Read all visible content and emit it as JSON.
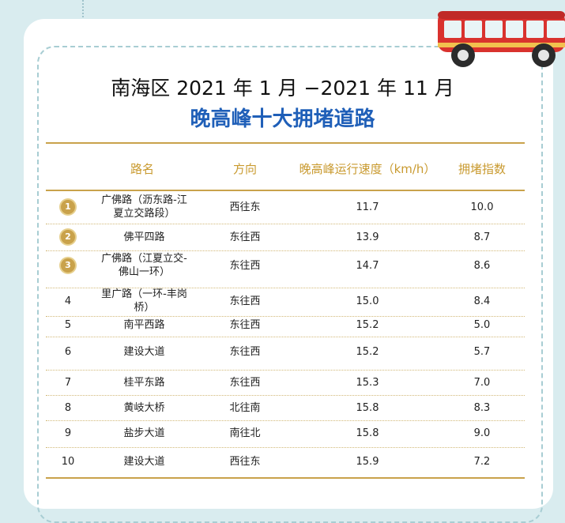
{
  "title_line1": "南海区 2021 年 1 月 −2021 年 11 月",
  "title_line2": "晚高峰十大拥堵道路",
  "headers": {
    "road": "路名",
    "direction": "方向",
    "speed": "晚高峰运行速度（km/h）",
    "index": "拥堵指数"
  },
  "rows": [
    {
      "rank": "1",
      "road": [
        "广佛路（沥东路-江",
        "夏立交路段）"
      ],
      "direction": "西往东",
      "speed": "11.7",
      "index": "10.0",
      "badge": true
    },
    {
      "rank": "2",
      "road": [
        "佛平四路"
      ],
      "direction": "东往西",
      "speed": "13.9",
      "index": "8.7",
      "badge": true
    },
    {
      "rank": "3",
      "road": [
        "广佛路（江夏立交-",
        "佛山一环）"
      ],
      "direction": "东往西",
      "speed": "14.7",
      "index": "8.6",
      "badge": true
    },
    {
      "rank": "4",
      "road": [
        "里广路（一环-丰岗",
        "桥）"
      ],
      "direction": "东往西",
      "speed": "15.0",
      "index": "8.4",
      "badge": false
    },
    {
      "rank": "5",
      "road": [
        "南平西路"
      ],
      "direction": "东往西",
      "speed": "15.2",
      "index": "5.0",
      "badge": false
    },
    {
      "rank": "6",
      "road": [
        "建设大道"
      ],
      "direction": "东往西",
      "speed": "15.2",
      "index": "5.7",
      "badge": false
    },
    {
      "rank": "7",
      "road": [
        "桂平东路"
      ],
      "direction": "东往西",
      "speed": "15.3",
      "index": "7.0",
      "badge": false
    },
    {
      "rank": "8",
      "road": [
        "黄岐大桥"
      ],
      "direction": "北往南",
      "speed": "15.8",
      "index": "8.3",
      "badge": false
    },
    {
      "rank": "9",
      "road": [
        "盐步大道"
      ],
      "direction": "南往北",
      "speed": "15.8",
      "index": "9.0",
      "badge": false
    },
    {
      "rank": "10",
      "road": [
        "建设大道"
      ],
      "direction": "西往东",
      "speed": "15.9",
      "index": "7.2",
      "badge": false
    }
  ],
  "colors": {
    "title_blue": "#1f5fb8",
    "header_gold": "#c99a2f",
    "rule_gold": "#c9a24b",
    "bus_red": "#d9322e"
  },
  "decor": {
    "bus": "bus-illustration"
  }
}
